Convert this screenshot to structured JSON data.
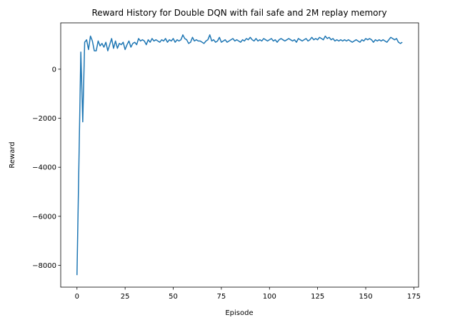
{
  "chart_data": {
    "type": "line",
    "title": "Reward History for Double DQN with fail safe and 2M replay memory",
    "x_label": "Episode",
    "y_label": "Reward",
    "color": "#1f77b4",
    "grid": false,
    "xlim": [
      -8.45,
      177.45
    ],
    "xticks": [
      0,
      25,
      50,
      75,
      100,
      125,
      150,
      175
    ],
    "ylim": [
      -8890,
      1890
    ],
    "yticks": [
      {
        "value": -8000,
        "label": "−8000"
      },
      {
        "value": -6000,
        "label": "−6000"
      },
      {
        "value": -4000,
        "label": "−4000"
      },
      {
        "value": -2000,
        "label": "−2000"
      },
      0
    ],
    "x": [
      0,
      1,
      2,
      3,
      4,
      5,
      6,
      7,
      8,
      9,
      10,
      11,
      12,
      13,
      14,
      15,
      16,
      17,
      18,
      19,
      20,
      21,
      22,
      23,
      24,
      25,
      26,
      27,
      28,
      29,
      30,
      31,
      32,
      33,
      34,
      35,
      36,
      37,
      38,
      39,
      40,
      41,
      42,
      43,
      44,
      45,
      46,
      47,
      48,
      49,
      50,
      51,
      52,
      53,
      54,
      55,
      56,
      57,
      58,
      59,
      60,
      61,
      62,
      63,
      64,
      65,
      66,
      67,
      68,
      69,
      70,
      71,
      72,
      73,
      74,
      75,
      76,
      77,
      78,
      79,
      80,
      81,
      82,
      83,
      84,
      85,
      86,
      87,
      88,
      89,
      90,
      91,
      92,
      93,
      94,
      95,
      96,
      97,
      98,
      99,
      100,
      101,
      102,
      103,
      104,
      105,
      106,
      107,
      108,
      109,
      110,
      111,
      112,
      113,
      114,
      115,
      116,
      117,
      118,
      119,
      120,
      121,
      122,
      123,
      124,
      125,
      126,
      127,
      128,
      129,
      130,
      131,
      132,
      133,
      134,
      135,
      136,
      137,
      138,
      139,
      140,
      141,
      142,
      143,
      144,
      145,
      146,
      147,
      148,
      149,
      150,
      151,
      152,
      153,
      154,
      155,
      156,
      157,
      158,
      159,
      160,
      161,
      162,
      163,
      164,
      165,
      166,
      167,
      168,
      169
    ],
    "values": [
      -8400,
      -3850,
      700,
      -2150,
      1100,
      1200,
      800,
      1350,
      1150,
      750,
      750,
      1150,
      950,
      1050,
      900,
      1100,
      750,
      1000,
      1250,
      850,
      1150,
      850,
      1050,
      1000,
      1100,
      800,
      1000,
      1150,
      900,
      1050,
      1100,
      1000,
      1250,
      1150,
      1200,
      1150,
      1000,
      1200,
      1100,
      1250,
      1150,
      1200,
      1150,
      1100,
      1200,
      1150,
      1250,
      1100,
      1200,
      1150,
      1250,
      1100,
      1200,
      1150,
      1200,
      1400,
      1250,
      1200,
      1050,
      1100,
      1300,
      1150,
      1200,
      1150,
      1150,
      1100,
      1050,
      1150,
      1200,
      1400,
      1150,
      1200,
      1100,
      1150,
      1300,
      1100,
      1150,
      1200,
      1100,
      1150,
      1200,
      1250,
      1150,
      1200,
      1150,
      1100,
      1200,
      1150,
      1250,
      1200,
      1300,
      1200,
      1150,
      1250,
      1150,
      1200,
      1150,
      1250,
      1200,
      1150,
      1200,
      1250,
      1150,
      1200,
      1100,
      1200,
      1250,
      1200,
      1150,
      1200,
      1250,
      1200,
      1150,
      1200,
      1100,
      1250,
      1200,
      1150,
      1200,
      1250,
      1150,
      1200,
      1300,
      1200,
      1250,
      1200,
      1300,
      1250,
      1200,
      1350,
      1250,
      1300,
      1200,
      1250,
      1150,
      1200,
      1150,
      1200,
      1150,
      1200,
      1150,
      1200,
      1150,
      1100,
      1150,
      1200,
      1150,
      1100,
      1200,
      1150,
      1250,
      1200,
      1250,
      1200,
      1100,
      1200,
      1150,
      1200,
      1150,
      1200,
      1150,
      1100,
      1200,
      1300,
      1250,
      1200,
      1250,
      1100,
      1050,
      1100
    ]
  }
}
